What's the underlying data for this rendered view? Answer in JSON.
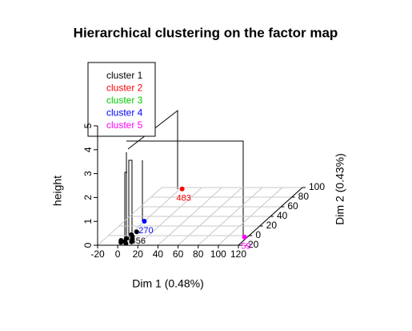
{
  "chart_data": {
    "type": "scatter3d",
    "title": "Hierarchical clustering on the factor map",
    "x_label": "Dim 1 (0.48%)",
    "y_label": "Dim 2 (0.43%)",
    "z_label": "height",
    "xlim": [
      -20,
      120
    ],
    "xticks": [
      -20,
      0,
      20,
      40,
      60,
      80,
      100,
      120
    ],
    "ylim": [
      -20,
      100
    ],
    "yticks": [
      -20,
      0,
      20,
      40,
      60,
      80,
      100
    ],
    "zlim": [
      0,
      5
    ],
    "zticks": [
      0,
      1,
      2,
      3,
      4,
      5
    ],
    "grid": true,
    "legend_position": "top-left",
    "clusters": [
      {
        "name": "cluster 1",
        "color": "#000000"
      },
      {
        "name": "cluster 2",
        "color": "#ff0000"
      },
      {
        "name": "cluster 3",
        "color": "#00cd00"
      },
      {
        "name": "cluster 4",
        "color": "#0000ff"
      },
      {
        "name": "cluster 5",
        "color": "#ff00ff"
      }
    ],
    "points": [
      {
        "x": 2,
        "y": 97,
        "z": 0,
        "cluster": 1,
        "label": "483"
      },
      {
        "x": 117,
        "y": -3,
        "z": 0,
        "cluster": 4,
        "label": "59"
      },
      {
        "x": 0,
        "y": 30,
        "z": 0,
        "cluster": 3,
        "label": "270"
      },
      {
        "x": 4,
        "y": 8,
        "z": 0,
        "cluster": 0,
        "label": "456"
      },
      {
        "x": 0,
        "y": -14,
        "z": 0,
        "cluster": 0
      },
      {
        "x": 3,
        "y": -12,
        "z": 0,
        "cluster": 0
      },
      {
        "x": 6,
        "y": -16,
        "z": 0,
        "cluster": 0
      },
      {
        "x": -2,
        "y": -10,
        "z": 0,
        "cluster": 0
      },
      {
        "x": 8,
        "y": -8,
        "z": 0,
        "cluster": 0
      },
      {
        "x": 1,
        "y": -6,
        "z": 0,
        "cluster": 0
      },
      {
        "x": 5,
        "y": -2,
        "z": 0,
        "cluster": 0
      },
      {
        "x": 10,
        "y": -13,
        "z": 0,
        "cluster": 0
      },
      {
        "x": 2,
        "y": 2,
        "z": 0,
        "cluster": 0
      }
    ]
  }
}
